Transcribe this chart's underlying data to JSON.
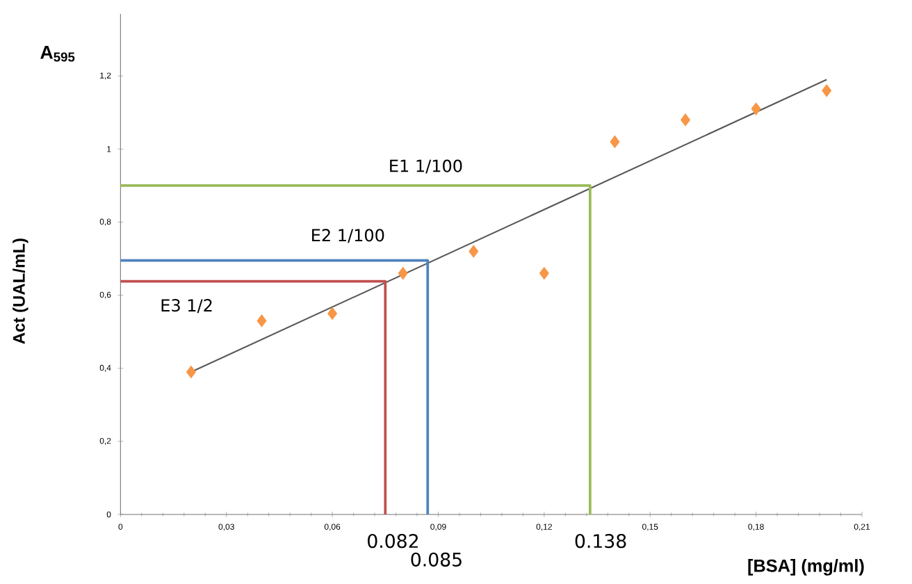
{
  "chart_data": {
    "type": "scatter",
    "title": "A$_{595}$",
    "xlabel": "[BSA] (mg/ml)",
    "ylabel": "Act (UAL/mL)",
    "xlim": [
      0,
      0.21
    ],
    "ylim": [
      0,
      1.37
    ],
    "xticks": [
      {
        "value": 0,
        "label": "0"
      },
      {
        "value": 0.03,
        "label": "0,03"
      },
      {
        "value": 0.06,
        "label": "0,06"
      },
      {
        "value": 0.09,
        "label": "0,09"
      },
      {
        "value": 0.12,
        "label": "0,12"
      },
      {
        "value": 0.15,
        "label": "0,15"
      },
      {
        "value": 0.18,
        "label": "0,18"
      },
      {
        "value": 0.21,
        "label": "0,21"
      }
    ],
    "yticks": [
      {
        "value": 0,
        "label": "0"
      },
      {
        "value": 0.2,
        "label": "0,2"
      },
      {
        "value": 0.4,
        "label": "0,4"
      },
      {
        "value": 0.6,
        "label": "0,6"
      },
      {
        "value": 0.8,
        "label": "0,8"
      },
      {
        "value": 1,
        "label": "1"
      },
      {
        "value": 1.2,
        "label": "1,2"
      }
    ],
    "series": [
      {
        "marker": "diamond",
        "color": "#f79646",
        "x": [
          0.02,
          0.04,
          0.06,
          0.08,
          0.1,
          0.12,
          0.14,
          0.16,
          0.18,
          0.2
        ],
        "values": [
          0.39,
          0.53,
          0.55,
          0.66,
          0.72,
          0.66,
          1.02,
          1.08,
          1.11,
          1.16
        ]
      },
      {
        "type": "line",
        "color": "#595959",
        "x": [
          0.02,
          0.2
        ],
        "values": [
          0.39,
          1.19
        ]
      },
      {
        "type": "line",
        "name": "E1 1/100",
        "color": "#9bbb59",
        "x": [
          0,
          0.133,
          0.133
        ],
        "values": [
          0.9,
          0.9,
          0
        ]
      },
      {
        "type": "line",
        "name": "E2 1/100",
        "color": "#4f81bd",
        "x": [
          0,
          0.087,
          0.087
        ],
        "values": [
          0.695,
          0.695,
          0
        ]
      },
      {
        "type": "line",
        "name": "E3 1/2",
        "color": "#c0504d",
        "x": [
          0,
          0.075,
          0.075
        ],
        "values": [
          0.638,
          0.638,
          0
        ]
      }
    ],
    "annotations": [
      "0.082",
      "0.085",
      "0.138"
    ]
  }
}
